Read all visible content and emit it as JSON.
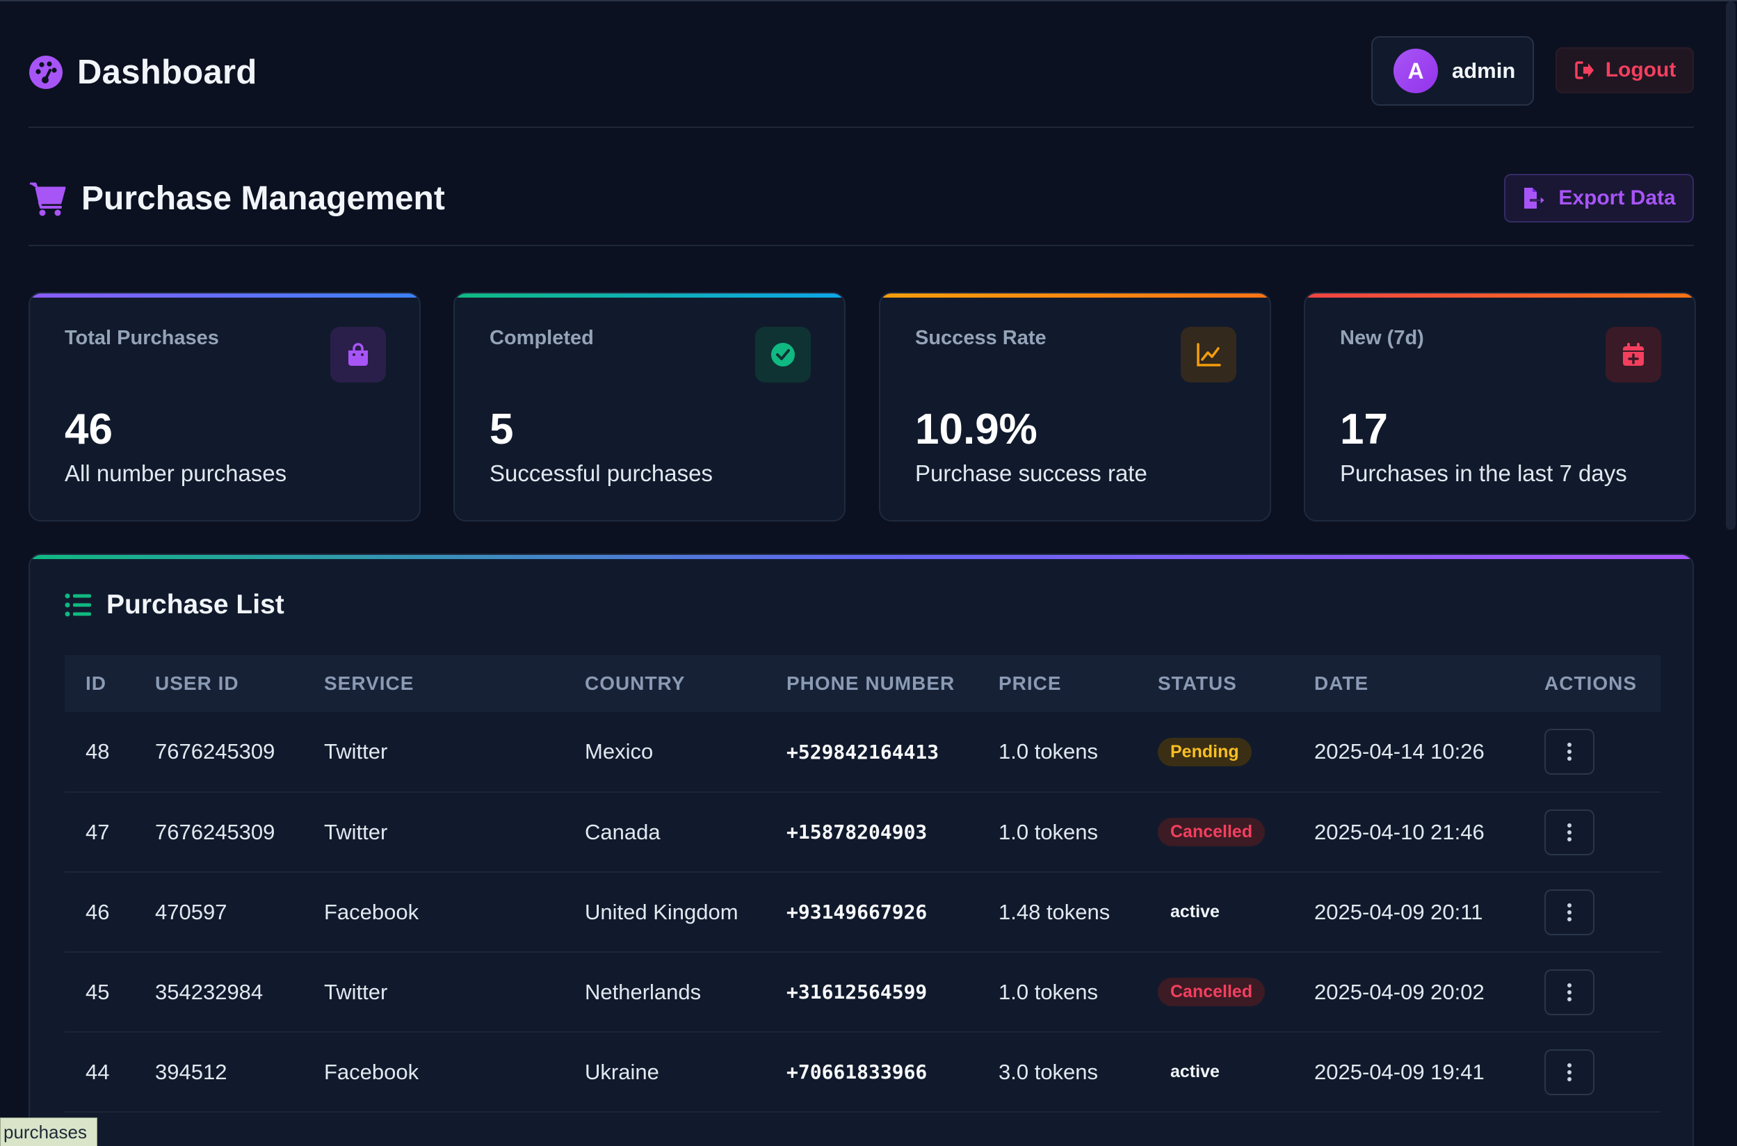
{
  "header": {
    "title": "Dashboard",
    "user": {
      "avatar_letter": "A",
      "name": "admin"
    },
    "logout_label": "Logout"
  },
  "section": {
    "title": "Purchase Management",
    "export_label": "Export Data"
  },
  "stats": [
    {
      "label": "Total Purchases",
      "value": "46",
      "desc": "All number purchases",
      "icon": "shopping-bag-icon",
      "color": "#a855f7"
    },
    {
      "label": "Completed",
      "value": "5",
      "desc": "Successful purchases",
      "icon": "check-circle-icon",
      "color": "#10b981"
    },
    {
      "label": "Success Rate",
      "value": "10.9%",
      "desc": "Purchase success rate",
      "icon": "chart-line-icon",
      "color": "#f59e0b"
    },
    {
      "label": "New (7d)",
      "value": "17",
      "desc": "Purchases in the last 7 days",
      "icon": "calendar-plus-icon",
      "color": "#f43f5e"
    }
  ],
  "list": {
    "title": "Purchase List",
    "columns": [
      "ID",
      "USER ID",
      "SERVICE",
      "COUNTRY",
      "PHONE NUMBER",
      "PRICE",
      "STATUS",
      "DATE",
      "ACTIONS"
    ],
    "rows": [
      {
        "id": "48",
        "user_id": "7676245309",
        "service": "Twitter",
        "country": "Mexico",
        "phone": "+529842164413",
        "price": "1.0 tokens",
        "status": "Pending",
        "status_type": "pending",
        "date": "2025-04-14 10:26"
      },
      {
        "id": "47",
        "user_id": "7676245309",
        "service": "Twitter",
        "country": "Canada",
        "phone": "+15878204903",
        "price": "1.0 tokens",
        "status": "Cancelled",
        "status_type": "cancelled",
        "date": "2025-04-10 21:46"
      },
      {
        "id": "46",
        "user_id": "470597",
        "service": "Facebook",
        "country": "United Kingdom",
        "phone": "+93149667926",
        "price": "1.48 tokens",
        "status": "active",
        "status_type": "active",
        "date": "2025-04-09 20:11"
      },
      {
        "id": "45",
        "user_id": "354232984",
        "service": "Twitter",
        "country": "Netherlands",
        "phone": "+31612564599",
        "price": "1.0 tokens",
        "status": "Cancelled",
        "status_type": "cancelled",
        "date": "2025-04-09 20:02"
      },
      {
        "id": "44",
        "user_id": "394512",
        "service": "Facebook",
        "country": "Ukraine",
        "phone": "+70661833966",
        "price": "3.0 tokens",
        "status": "active",
        "status_type": "active",
        "date": "2025-04-09 19:41"
      }
    ]
  },
  "tooltip": "purchases"
}
